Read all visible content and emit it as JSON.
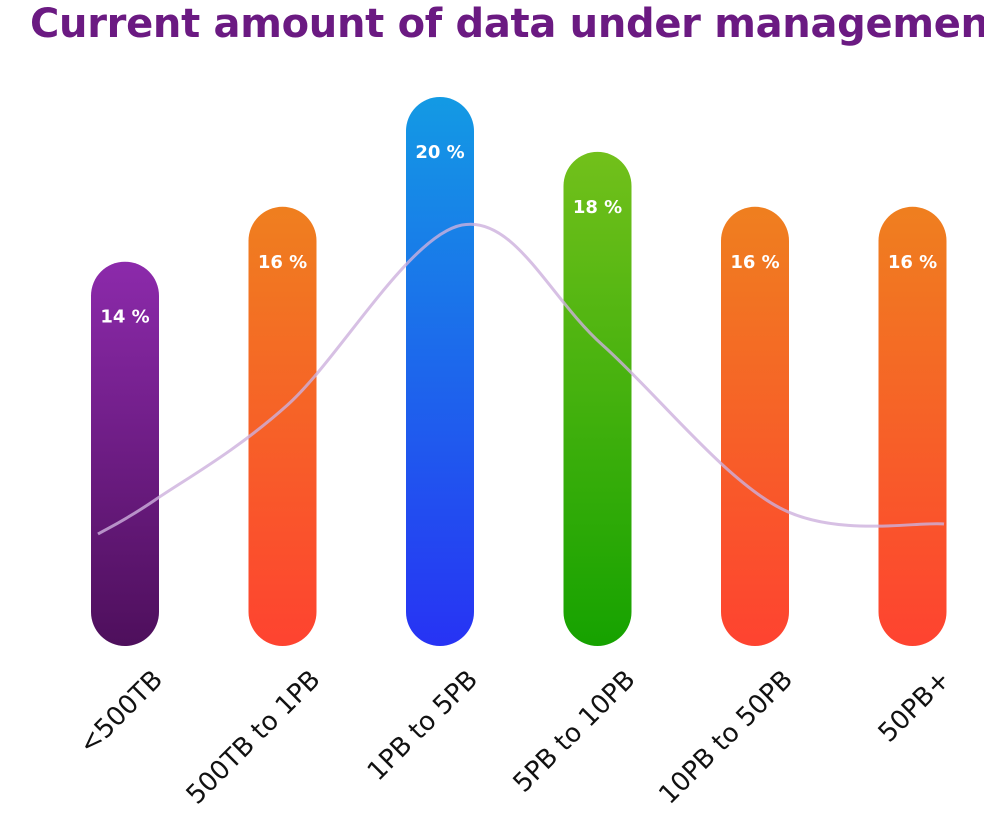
{
  "chart_data": {
    "type": "bar",
    "title": "Current amount of data under management",
    "categories": [
      "<500TB",
      "500TB to 1PB",
      "1PB to 5PB",
      "5PB to 10PB",
      "10PB to 50PB",
      "50PB+"
    ],
    "values": [
      14,
      16,
      20,
      18,
      16,
      16
    ],
    "value_labels": [
      "14 %",
      "16 %",
      "20 %",
      "18 %",
      "16 %",
      "16 %"
    ],
    "unit": "%",
    "grid": false,
    "legend": "none",
    "trend_line": true,
    "ylim": [
      0,
      20
    ]
  },
  "colors": {
    "title": "#6b1a82",
    "trend": "#cdb0dd",
    "bar_gradients": [
      [
        "#8c2aab",
        "#4e0f5c"
      ],
      [
        "#ef7f1f",
        "#fe4330"
      ],
      [
        "#139ae4",
        "#2733f4"
      ],
      [
        "#72c01b",
        "#16a200"
      ],
      [
        "#ef7f1f",
        "#fe4330"
      ],
      [
        "#ef7f1f",
        "#fe4330"
      ]
    ]
  }
}
